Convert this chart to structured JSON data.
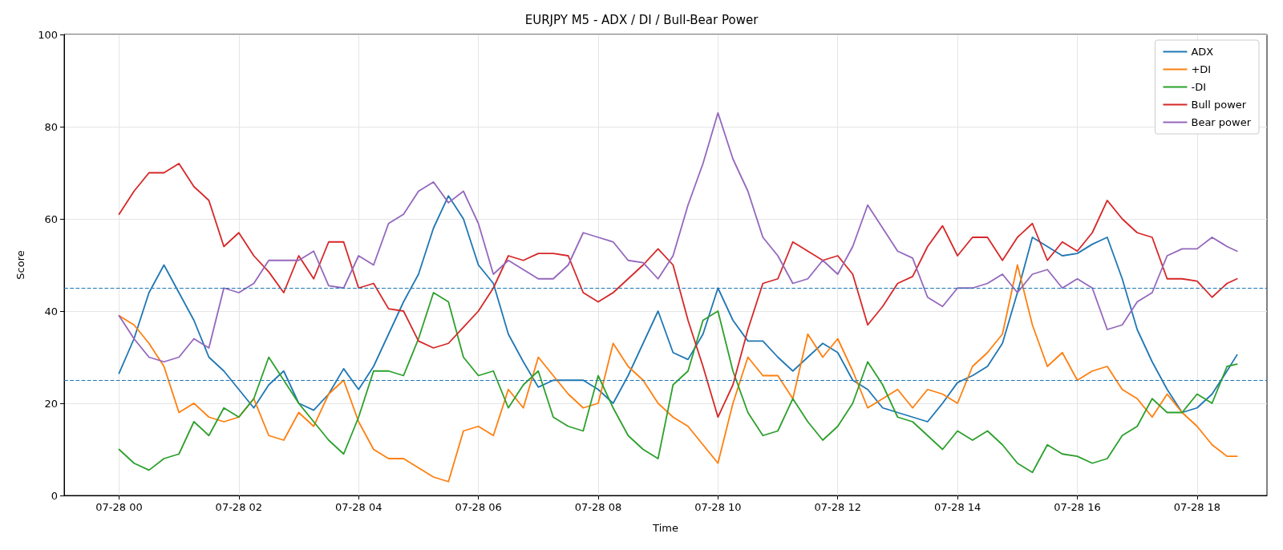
{
  "chart_data": {
    "type": "line",
    "title": "EURJPY M5 - ADX / DI / Bull-Bear Power",
    "xlabel": "Time",
    "ylabel": "Score",
    "x": [
      "--07-28T00:00",
      "--07-28T00:15",
      "--07-28T00:30",
      "--07-28T00:45",
      "--07-28T01:00",
      "--07-28T01:15",
      "--07-28T01:30",
      "--07-28T01:45",
      "--07-28T02:00",
      "--07-28T02:15",
      "--07-28T02:30",
      "--07-28T02:45",
      "--07-28T03:00",
      "--07-28T03:15",
      "--07-28T03:30",
      "--07-28T03:45",
      "--07-28T04:00",
      "--07-28T04:15",
      "--07-28T04:30",
      "--07-28T04:45",
      "--07-28T05:00",
      "--07-28T05:15",
      "--07-28T05:30",
      "--07-28T05:45",
      "--07-28T06:00",
      "--07-28T06:15",
      "--07-28T06:30",
      "--07-28T06:45",
      "--07-28T07:00",
      "--07-28T07:15",
      "--07-28T07:30",
      "--07-28T07:45",
      "--07-28T08:00",
      "--07-28T08:15",
      "--07-28T08:30",
      "--07-28T08:45",
      "--07-28T09:00",
      "--07-28T09:15",
      "--07-28T09:30",
      "--07-28T09:45",
      "--07-28T10:00",
      "--07-28T10:15",
      "--07-28T10:30",
      "--07-28T10:45",
      "--07-28T11:00",
      "--07-28T11:15",
      "--07-28T11:30",
      "--07-28T11:45",
      "--07-28T12:00",
      "--07-28T12:15",
      "--07-28T12:30",
      "--07-28T12:45",
      "--07-28T13:00",
      "--07-28T13:15",
      "--07-28T13:30",
      "--07-28T13:45",
      "--07-28T14:00",
      "--07-28T14:15",
      "--07-28T14:30",
      "--07-28T14:45",
      "--07-28T15:00",
      "--07-28T15:15",
      "--07-28T15:30",
      "--07-28T15:45",
      "--07-28T16:00",
      "--07-28T16:15",
      "--07-28T16:30",
      "--07-28T16:45",
      "--07-28T17:00",
      "--07-28T17:15",
      "--07-28T17:30",
      "--07-28T17:45",
      "--07-28T18:00",
      "--07-28T18:15",
      "--07-28T18:30",
      "--07-28T18:40"
    ],
    "series": [
      {
        "name": "ADX",
        "color": "#1f77b4",
        "values": [
          26.5,
          34,
          44,
          50,
          44,
          38,
          30,
          27,
          23,
          19,
          24,
          27,
          20,
          18.5,
          22,
          27.5,
          23,
          28,
          35,
          42,
          48,
          58,
          65,
          60,
          50,
          46,
          35,
          29,
          23.5,
          25,
          25,
          25,
          23,
          20,
          26,
          33,
          40,
          31,
          29.5,
          35,
          45,
          38,
          33.5,
          33.5,
          30,
          27,
          30,
          33,
          31,
          25,
          23,
          19,
          18,
          17,
          16,
          20,
          24.5,
          26,
          28,
          33,
          44,
          56,
          54,
          52,
          52.5,
          54.5,
          56,
          47,
          36,
          29,
          23,
          18,
          19,
          22,
          27,
          30.5
        ]
      },
      {
        "name": "+DI",
        "color": "#ff7f0e",
        "values": [
          39,
          37,
          33,
          28,
          18,
          20,
          17,
          16,
          17,
          21,
          13,
          12,
          18,
          15,
          22,
          25,
          16,
          10,
          8,
          8,
          6,
          4,
          3,
          14,
          15,
          13,
          23,
          19,
          30,
          26,
          22,
          19,
          20,
          33,
          28,
          25,
          20,
          17,
          15,
          11,
          7,
          20,
          30,
          26,
          26,
          21,
          35,
          30,
          34,
          27,
          19,
          21,
          23,
          19,
          23,
          22,
          20,
          28,
          31,
          35,
          50,
          37,
          28,
          31,
          25,
          27,
          28,
          23,
          21,
          17,
          22,
          18,
          15,
          11,
          8.5,
          8.5
        ]
      },
      {
        "name": "-DI",
        "color": "#2ca02c",
        "values": [
          10,
          7,
          5.5,
          8,
          9,
          16,
          13,
          19,
          17,
          21,
          30,
          25,
          20,
          16,
          12,
          9,
          17,
          27,
          27,
          26,
          34,
          44,
          42,
          30,
          26,
          27,
          19,
          24,
          27,
          17,
          15,
          14,
          26,
          19,
          13,
          10,
          8,
          24,
          27,
          38,
          40,
          27,
          18,
          13,
          14,
          21,
          16,
          12,
          15,
          20,
          29,
          24,
          17,
          16,
          13,
          10,
          14,
          12,
          14,
          11,
          7,
          5,
          11,
          9,
          8.5,
          7,
          8,
          13,
          15,
          21,
          18,
          18,
          22,
          20,
          28,
          28.5
        ]
      },
      {
        "name": "Bull power",
        "color": "#d62728",
        "values": [
          61,
          66,
          70,
          70,
          72,
          67,
          64,
          54,
          57,
          52,
          48.5,
          44,
          52,
          47,
          55,
          55,
          45,
          46,
          40.5,
          40,
          33.5,
          32,
          33,
          36.5,
          40,
          45,
          52,
          51,
          52.5,
          52.5,
          52,
          44,
          42,
          44,
          47,
          50,
          53.5,
          50,
          38,
          28,
          17,
          24,
          36,
          46,
          47,
          55,
          53,
          51,
          52,
          48,
          37,
          41,
          46,
          47.5,
          54,
          58.5,
          52,
          56,
          56,
          51,
          56,
          59,
          51,
          55,
          53,
          57,
          64,
          60,
          57,
          56,
          47,
          47,
          46.5,
          43,
          46,
          47
        ]
      },
      {
        "name": "Bear power",
        "color": "#9467bd",
        "values": [
          39,
          34,
          30,
          29,
          30,
          34,
          32,
          45,
          44,
          46,
          51,
          51,
          51,
          53,
          45.5,
          45,
          52,
          50,
          59,
          61,
          66,
          68,
          63.5,
          66,
          59,
          48,
          51,
          49,
          47,
          47,
          50,
          57,
          56,
          55,
          51,
          50.5,
          47,
          52,
          63,
          72,
          83,
          73,
          66,
          56,
          52,
          46,
          47,
          51,
          48,
          54,
          63,
          58,
          53,
          51.5,
          43,
          41,
          45,
          45,
          46,
          48,
          44,
          48,
          49,
          45,
          47,
          45,
          36,
          37,
          42,
          44,
          52,
          53.5,
          53.5,
          56,
          54,
          53
        ]
      }
    ],
    "xlim": [
      "--07-27T23:05",
      "--07-28T19:10"
    ],
    "xticks": [
      {
        "value": "--07-28T00:00",
        "label": "07-28 00"
      },
      {
        "value": "--07-28T02:00",
        "label": "07-28 02"
      },
      {
        "value": "--07-28T04:00",
        "label": "07-28 04"
      },
      {
        "value": "--07-28T06:00",
        "label": "07-28 06"
      },
      {
        "value": "--07-28T08:00",
        "label": "07-28 08"
      },
      {
        "value": "--07-28T10:00",
        "label": "07-28 10"
      },
      {
        "value": "--07-28T12:00",
        "label": "07-28 12"
      },
      {
        "value": "--07-28T14:00",
        "label": "07-28 14"
      },
      {
        "value": "--07-28T16:00",
        "label": "07-28 16"
      },
      {
        "value": "--07-28T18:00",
        "label": "07-28 18"
      }
    ],
    "ylim": [
      0,
      100
    ],
    "yticks": [
      0,
      20,
      40,
      60,
      80,
      100
    ],
    "ref_lines": [
      {
        "axis": "y",
        "value": 45,
        "color": "#1f77b4",
        "line_style": "dashed"
      },
      {
        "axis": "y",
        "value": 25,
        "color": "#1f77b4",
        "line_style": "dashed"
      }
    ],
    "grid": true,
    "legend": "top right",
    "marker": "none",
    "line_style": "solid"
  }
}
